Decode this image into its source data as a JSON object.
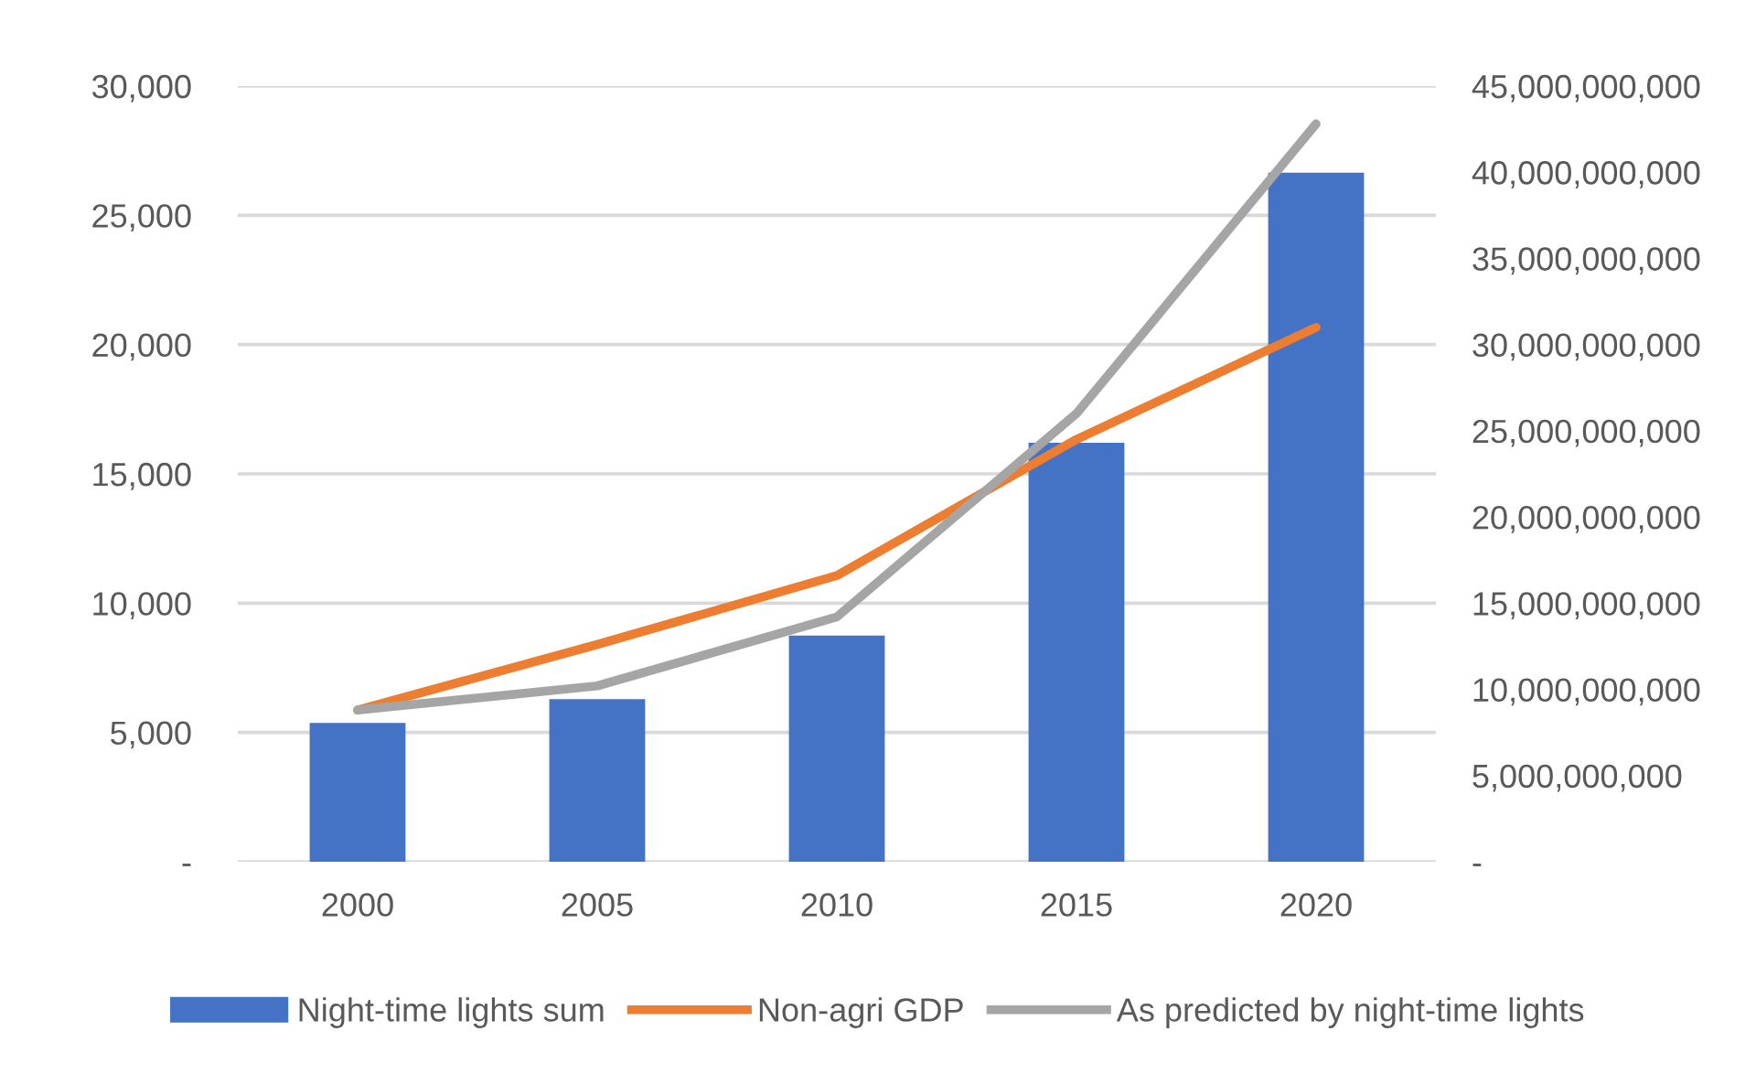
{
  "chart_data": {
    "type": "bar",
    "categories": [
      "2000",
      "2005",
      "2010",
      "2015",
      "2020"
    ],
    "series": [
      {
        "name": "Night-time lights sum",
        "color": "#4472c4",
        "values": [
          5370,
          6290,
          8750,
          16200,
          26650
        ]
      },
      {
        "name": "Non-agri GDP",
        "type": "line",
        "axis": "y2",
        "color": "#ed7d31",
        "values": [
          8800000000,
          12600000000,
          16600000000,
          24500000000,
          31000000000
        ]
      },
      {
        "name": "As predicted by night-time lights",
        "type": "line",
        "axis": "y2",
        "color": "#a5a5a5",
        "values": [
          8800000000,
          10200000000,
          14200000000,
          26000000000,
          42800000000
        ]
      }
    ],
    "ylim": [
      0,
      30000
    ],
    "yticks": [
      {
        "value": 0,
        "label": "-"
      },
      {
        "value": 5000,
        "label": "5,000"
      },
      {
        "value": 10000,
        "label": "10,000"
      },
      {
        "value": 15000,
        "label": "15,000"
      },
      {
        "value": 20000,
        "label": "20,000"
      },
      {
        "value": 25000,
        "label": "25,000"
      },
      {
        "value": 30000,
        "label": "30,000"
      }
    ],
    "y2lim": [
      0,
      45000000000
    ],
    "y2ticks": [
      {
        "value": 0,
        "label": "-"
      },
      {
        "value": 5000000000,
        "label": "5,000,000,000"
      },
      {
        "value": 10000000000,
        "label": "10,000,000,000"
      },
      {
        "value": 15000000000,
        "label": "15,000,000,000"
      },
      {
        "value": 20000000000,
        "label": "20,000,000,000"
      },
      {
        "value": 25000000000,
        "label": "25,000,000,000"
      },
      {
        "value": 30000000000,
        "label": "30,000,000,000"
      },
      {
        "value": 35000000000,
        "label": "35,000,000,000"
      },
      {
        "value": 40000000000,
        "label": "40,000,000,000"
      },
      {
        "value": 45000000000,
        "label": "45,000,000,000"
      }
    ],
    "grid": "y",
    "legend": "bottom"
  }
}
